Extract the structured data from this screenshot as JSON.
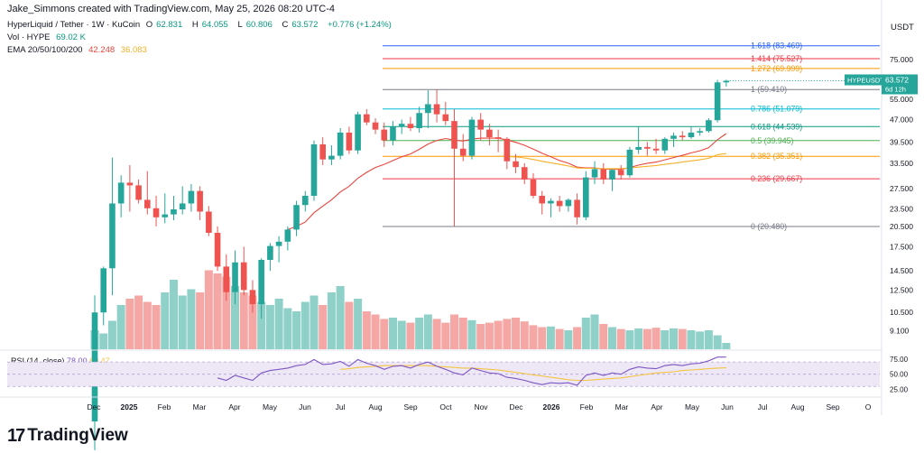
{
  "header": {
    "caption": "Jake_Simmons created with TradingView.com, May 25, 2026 08:20 UTC-4",
    "symbol_line": "HyperLiquid / Tether · 1W · KuCoin",
    "ohlc": {
      "o_label": "O",
      "o": "62.831",
      "h_label": "H",
      "h": "64.055",
      "l_label": "L",
      "l": "60.806",
      "c_label": "C",
      "c": "63.572",
      "change": "+0.776 (+1.24%)"
    },
    "vol_label": "Vol · HYPE",
    "vol_value": "69.02 K",
    "ema_label": "EMA 20/50/100/200",
    "ema_20": "42.248",
    "ema_50": "36.083",
    "currency": "USDT"
  },
  "price_tag": {
    "symbol": "HYPEUSDT",
    "price": "63.572",
    "countdown": "6d 12h"
  },
  "rsi": {
    "label": "RSI (14, close)",
    "value": "78.00",
    "ma_value": "60.47",
    "levels": [
      "75.00",
      "50.00",
      "25.00"
    ]
  },
  "brand": {
    "name": "TradingView",
    "mark": "17"
  },
  "colors": {
    "up": "#26a69a",
    "down": "#ef5350",
    "vol_up": "#8fd1c9",
    "vol_down": "#f4a7a5",
    "ema20": "#e8463e",
    "ema50": "#f5b128",
    "rsi": "#7e57c2",
    "rsi_ma": "#f5c542",
    "rsi_band": "#ede7f6"
  },
  "chart_data": {
    "type": "candlestick",
    "scale": "log",
    "y_ticks": [
      "75.000",
      "65.000",
      "55.000",
      "47.000",
      "39.500",
      "33.500",
      "27.500",
      "23.500",
      "20.500",
      "17.500",
      "14.500",
      "12.500",
      "10.500",
      "9.100"
    ],
    "x_ticks": [
      "Dec",
      "2025",
      "Feb",
      "Mar",
      "Apr",
      "May",
      "Jun",
      "Jul",
      "Aug",
      "Sep",
      "Oct",
      "Nov",
      "Dec",
      "2026",
      "Feb",
      "Mar",
      "Apr",
      "May",
      "Jun",
      "Jul",
      "Aug",
      "Sep",
      "O"
    ],
    "fib_levels": [
      {
        "label": "1.618 (83.469)",
        "value": 83.469,
        "color": "#2962ff"
      },
      {
        "label": "1.414 (75.527)",
        "value": 75.527,
        "color": "#f23645"
      },
      {
        "label": "1.272 (69.999)",
        "value": 69.999,
        "color": "#ff9800"
      },
      {
        "label": "1 (59.410)",
        "value": 59.41,
        "color": "#787b86"
      },
      {
        "label": "0.786 (51.079)",
        "value": 51.079,
        "color": "#00bcd4"
      },
      {
        "label": "0.618 (44.539)",
        "value": 44.539,
        "color": "#089981"
      },
      {
        "label": "0.5 (39.945)",
        "value": 39.945,
        "color": "#4caf50"
      },
      {
        "label": "0.382 (35.351)",
        "value": 35.351,
        "color": "#ff9800"
      },
      {
        "label": "0.236 (29.667)",
        "value": 29.667,
        "color": "#f23645"
      },
      {
        "label": "0 (20.480)",
        "value": 20.48,
        "color": "#787b86"
      }
    ],
    "candles": [
      [
        4.5,
        12.0,
        3.6,
        10.5
      ],
      [
        10.5,
        15.0,
        9.5,
        14.8
      ],
      [
        14.8,
        35.0,
        12.0,
        24.5
      ],
      [
        24.5,
        30.5,
        22.0,
        28.8
      ],
      [
        28.8,
        33.0,
        23.0,
        28.2
      ],
      [
        28.2,
        29.5,
        24.5,
        25.2
      ],
      [
        25.2,
        31.5,
        22.5,
        23.6
      ],
      [
        23.6,
        26.0,
        20.5,
        22.0
      ],
      [
        22.0,
        26.5,
        21.0,
        22.5
      ],
      [
        22.5,
        26.0,
        21.5,
        23.4
      ],
      [
        23.4,
        28.0,
        22.5,
        24.5
      ],
      [
        24.5,
        28.5,
        23.0,
        27.0
      ],
      [
        27.0,
        28.0,
        21.5,
        23.0
      ],
      [
        23.0,
        24.0,
        19.0,
        19.5
      ],
      [
        19.5,
        20.5,
        14.5,
        15.0
      ],
      [
        15.0,
        16.5,
        11.5,
        12.3
      ],
      [
        12.3,
        17.0,
        11.2,
        15.5
      ],
      [
        15.5,
        17.5,
        12.0,
        12.5
      ],
      [
        12.5,
        13.5,
        10.5,
        11.2
      ],
      [
        11.2,
        16.0,
        10.0,
        15.8
      ],
      [
        15.8,
        18.0,
        14.5,
        17.6
      ],
      [
        17.6,
        19.0,
        15.5,
        18.2
      ],
      [
        18.2,
        20.5,
        17.0,
        20.0
      ],
      [
        20.0,
        25.0,
        19.0,
        24.2
      ],
      [
        24.2,
        27.0,
        23.0,
        26.0
      ],
      [
        26.0,
        40.0,
        25.0,
        38.8
      ],
      [
        38.8,
        41.0,
        33.0,
        34.5
      ],
      [
        34.5,
        38.5,
        33.0,
        35.5
      ],
      [
        35.5,
        44.0,
        34.5,
        42.5
      ],
      [
        42.5,
        44.5,
        36.0,
        37.0
      ],
      [
        37.0,
        50.0,
        36.0,
        49.0
      ],
      [
        49.0,
        51.0,
        45.0,
        46.0
      ],
      [
        46.0,
        47.5,
        42.0,
        43.5
      ],
      [
        43.5,
        46.0,
        38.0,
        40.0
      ],
      [
        40.0,
        46.5,
        38.5,
        44.5
      ],
      [
        44.5,
        47.0,
        42.0,
        45.5
      ],
      [
        45.5,
        48.0,
        43.0,
        44.0
      ],
      [
        44.0,
        52.0,
        42.5,
        49.5
      ],
      [
        49.5,
        59.0,
        44.0,
        53.0
      ],
      [
        53.0,
        59.4,
        46.0,
        49.0
      ],
      [
        49.0,
        54.0,
        45.0,
        46.5
      ],
      [
        46.5,
        51.0,
        20.5,
        37.5
      ],
      [
        37.5,
        42.0,
        34.0,
        35.5
      ],
      [
        35.5,
        48.0,
        34.5,
        47.0
      ],
      [
        47.0,
        49.5,
        40.0,
        43.5
      ],
      [
        43.5,
        45.5,
        38.5,
        41.0
      ],
      [
        41.0,
        43.5,
        36.5,
        40.5
      ],
      [
        40.5,
        41.0,
        32.0,
        34.0
      ],
      [
        34.0,
        36.0,
        31.0,
        32.5
      ],
      [
        32.5,
        33.5,
        28.5,
        29.5
      ],
      [
        29.5,
        31.0,
        25.5,
        26.0
      ],
      [
        26.0,
        27.0,
        22.5,
        24.5
      ],
      [
        24.5,
        25.5,
        22.0,
        25.0
      ],
      [
        25.0,
        26.0,
        23.0,
        24.0
      ],
      [
        24.0,
        25.5,
        23.0,
        25.2
      ],
      [
        25.2,
        26.5,
        20.8,
        22.0
      ],
      [
        22.0,
        31.5,
        21.5,
        30.0
      ],
      [
        30.0,
        34.0,
        28.5,
        32.0
      ],
      [
        32.0,
        33.5,
        28.5,
        29.5
      ],
      [
        29.5,
        32.0,
        27.0,
        31.8
      ],
      [
        31.8,
        33.0,
        29.5,
        30.5
      ],
      [
        30.5,
        38.0,
        30.0,
        37.2
      ],
      [
        37.2,
        44.5,
        36.0,
        38.0
      ],
      [
        38.0,
        39.5,
        35.5,
        37.5
      ],
      [
        37.5,
        40.5,
        36.0,
        37.0
      ],
      [
        37.0,
        41.0,
        36.0,
        40.5
      ],
      [
        40.5,
        42.5,
        38.0,
        41.5
      ],
      [
        41.5,
        43.0,
        40.0,
        41.0
      ],
      [
        41.0,
        44.5,
        40.5,
        42.5
      ],
      [
        42.5,
        44.0,
        41.5,
        43.0
      ],
      [
        43.0,
        47.5,
        42.5,
        46.8
      ],
      [
        46.8,
        64.0,
        46.0,
        62.8
      ],
      [
        62.8,
        64.1,
        60.8,
        63.6
      ]
    ],
    "volumes": [
      0.3,
      0.25,
      0.45,
      0.7,
      0.8,
      0.85,
      0.75,
      0.7,
      0.9,
      1.1,
      0.85,
      0.95,
      0.9,
      1.25,
      1.2,
      1.15,
      1.0,
      0.9,
      0.85,
      0.75,
      0.7,
      0.8,
      0.65,
      0.6,
      0.75,
      0.85,
      0.7,
      0.9,
      1.0,
      0.75,
      0.8,
      0.6,
      0.55,
      0.48,
      0.5,
      0.45,
      0.42,
      0.5,
      0.55,
      0.48,
      0.42,
      0.55,
      0.5,
      0.46,
      0.4,
      0.42,
      0.45,
      0.48,
      0.5,
      0.44,
      0.38,
      0.35,
      0.36,
      0.32,
      0.3,
      0.35,
      0.5,
      0.55,
      0.4,
      0.35,
      0.32,
      0.3,
      0.33,
      0.32,
      0.34,
      0.3,
      0.33,
      0.32,
      0.3,
      0.28,
      0.3,
      0.22,
      0.1
    ],
    "ema20": [
      null,
      null,
      null,
      null,
      null,
      null,
      null,
      null,
      null,
      null,
      null,
      null,
      null,
      null,
      null,
      null,
      null,
      null,
      null,
      null,
      null,
      null,
      20.0,
      20.5,
      21.2,
      22.8,
      24.0,
      25.2,
      26.8,
      28.0,
      29.8,
      31.2,
      32.4,
      33.2,
      34.2,
      35.2,
      36.0,
      37.3,
      38.9,
      40.0,
      40.6,
      40.1,
      39.8,
      40.4,
      40.7,
      40.7,
      40.7,
      40.1,
      39.4,
      38.5,
      37.4,
      36.2,
      35.2,
      34.2,
      33.5,
      32.5,
      32.3,
      32.3,
      32.0,
      32.0,
      31.9,
      32.4,
      33.0,
      33.5,
      33.8,
      34.4,
      35.0,
      35.6,
      36.3,
      36.9,
      37.8,
      40.2,
      42.2
    ],
    "ema50": [
      null,
      null,
      null,
      null,
      null,
      null,
      null,
      null,
      null,
      null,
      null,
      null,
      null,
      null,
      null,
      null,
      null,
      null,
      null,
      null,
      null,
      null,
      null,
      null,
      null,
      null,
      null,
      null,
      null,
      null,
      null,
      null,
      null,
      null,
      null,
      null,
      null,
      null,
      null,
      null,
      null,
      null,
      null,
      null,
      null,
      null,
      35.4,
      35.3,
      35.2,
      34.9,
      34.5,
      34.0,
      33.6,
      33.2,
      32.8,
      32.3,
      32.2,
      32.2,
      32.1,
      32.1,
      32.1,
      32.3,
      32.5,
      32.7,
      32.9,
      33.2,
      33.5,
      33.8,
      34.1,
      34.4,
      34.8,
      35.8,
      36.1
    ],
    "rsi14": [
      null,
      null,
      null,
      null,
      null,
      null,
      null,
      null,
      null,
      null,
      null,
      null,
      null,
      null,
      44,
      40,
      48,
      44,
      40,
      52,
      56,
      58,
      60,
      64,
      66,
      74,
      66,
      67,
      71,
      63,
      74,
      68,
      64,
      58,
      63,
      64,
      60,
      66,
      70,
      63,
      58,
      52,
      49,
      60,
      56,
      52,
      51,
      45,
      43,
      40,
      36,
      33,
      36,
      35,
      36,
      32,
      48,
      52,
      48,
      52,
      50,
      58,
      62,
      60,
      59,
      64,
      66,
      64,
      67,
      68,
      72,
      78,
      78
    ],
    "rsi_ma": [
      null,
      null,
      null,
      null,
      null,
      null,
      null,
      null,
      null,
      null,
      null,
      null,
      null,
      null,
      null,
      null,
      null,
      null,
      null,
      null,
      null,
      null,
      null,
      null,
      null,
      null,
      null,
      null,
      58,
      59,
      61,
      62,
      63,
      64,
      64,
      64,
      64,
      64,
      64,
      63,
      62,
      61,
      60,
      60,
      59,
      58,
      57,
      55,
      53,
      51,
      49,
      47,
      45,
      43,
      41,
      40,
      40,
      41,
      42,
      43,
      44,
      46,
      48,
      50,
      52,
      53,
      54,
      56,
      57,
      58,
      59,
      60,
      60.5
    ]
  }
}
